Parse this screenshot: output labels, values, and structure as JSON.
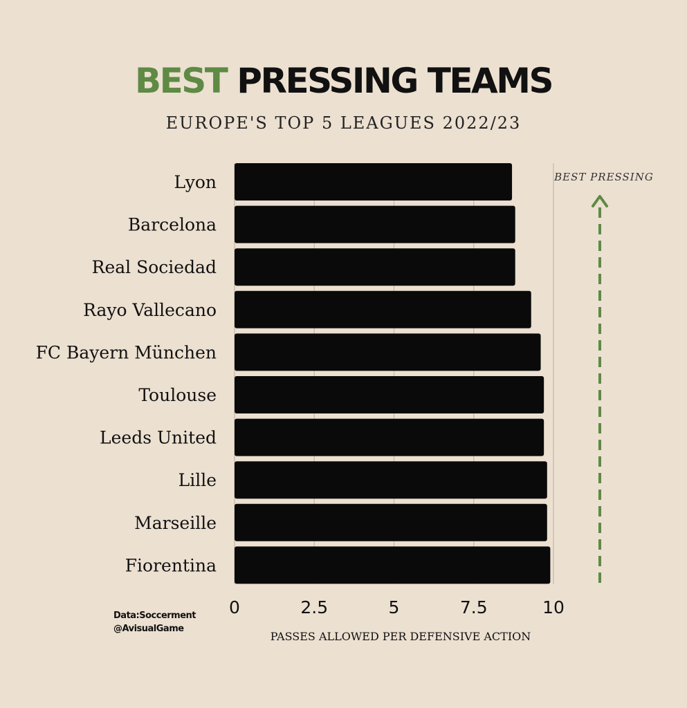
{
  "header": {
    "title_accent": "BEST",
    "title_rest": "PRESSING TEAMS",
    "subtitle": "EUROPE'S TOP 5 LEAGUES 2022/23"
  },
  "credits": {
    "line1": "Data:Soccerment",
    "line2": "@AvisualGame"
  },
  "colors": {
    "background": "#ece0d1",
    "bar": "#0a0a0a",
    "accent": "#5e8a44",
    "text": "#111111"
  },
  "chart_data": {
    "type": "bar",
    "orientation": "horizontal",
    "categories": [
      "Lyon",
      "Barcelona",
      "Real Sociedad",
      "Rayo Vallecano",
      "FC Bayern München",
      "Toulouse",
      "Leeds United",
      "Lille",
      "Marseille",
      "Fiorentina"
    ],
    "values": [
      8.7,
      8.8,
      8.8,
      9.3,
      9.6,
      9.7,
      9.7,
      9.8,
      9.8,
      9.9
    ],
    "xlim": [
      0,
      10
    ],
    "xticks": [
      "0",
      "2.5",
      "5",
      "7.5",
      "10"
    ],
    "xlabel": "PASSES ALLOWED PER DEFENSIVE ACTION",
    "ylabel": "",
    "grid": "vertical",
    "annotation": "BEST PRESSING"
  }
}
